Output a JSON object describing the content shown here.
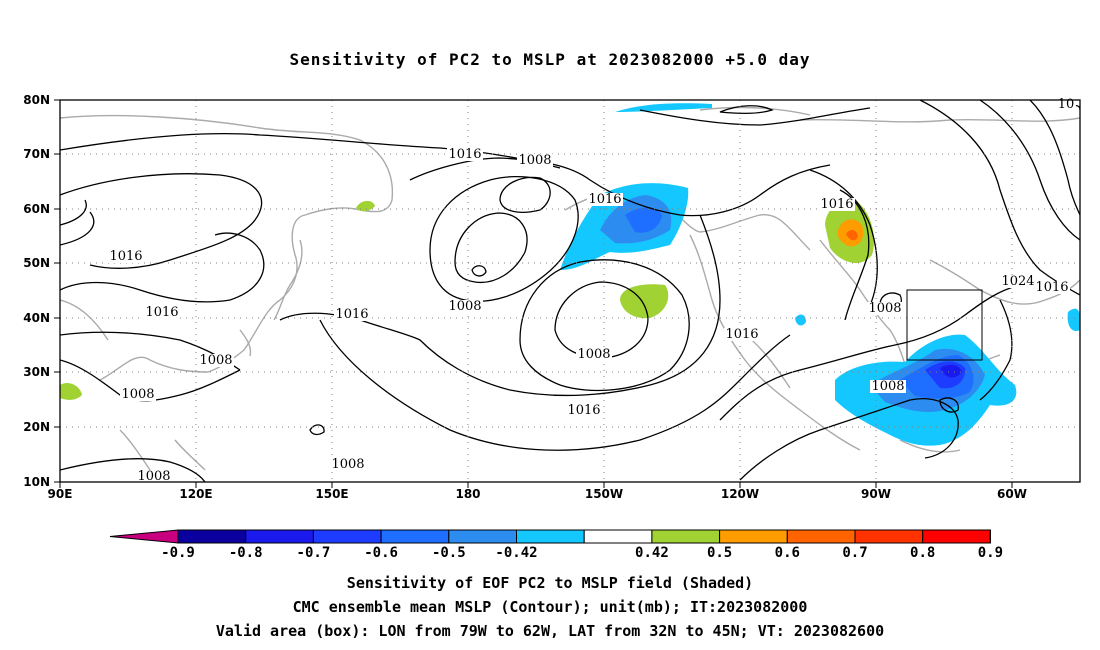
{
  "title": "Sensitivity of PC2 to MSLP at 2023082000 +5.0 day",
  "lat_labels": [
    "80N",
    "70N",
    "60N",
    "50N",
    "40N",
    "30N",
    "20N",
    "10N"
  ],
  "lon_labels": [
    "90E",
    "120E",
    "150E",
    "180",
    "150W",
    "120W",
    "90W",
    "60W"
  ],
  "contour_labels": [
    "1016",
    "1008",
    "1016",
    "1016",
    "1016",
    "1016",
    "1008",
    "1016",
    "1024",
    "1008",
    "1016",
    "1008",
    "1016",
    "1016",
    "1008",
    "1008",
    "1008",
    "1008",
    "1008",
    "10"
  ],
  "colorbar": {
    "ticks": [
      "-0.9",
      "-0.8",
      "-0.7",
      "-0.6",
      "-0.5",
      "-0.42",
      "0.42",
      "0.5",
      "0.6",
      "0.7",
      "0.8",
      "0.9"
    ],
    "colors": [
      "#0a00a0",
      "#1a1aee",
      "#1e3cff",
      "#1e6eff",
      "#2c8cf0",
      "#14c8ff",
      "#ffffff",
      "#a0d234",
      "#ff9c00",
      "#ff6400",
      "#ff3200",
      "#ff0000"
    ],
    "low_end": "#c8007f",
    "high_end": "#ff9ec8"
  },
  "valid_box": {
    "lon_from": "79W",
    "lon_to": "62W",
    "lat_from": "32N",
    "lat_to": "45N"
  },
  "captions": [
    "Sensitivity of EOF PC2 to MSLP field (Shaded)",
    "CMC ensemble mean MSLP (Contour); unit(mb); IT:2023082000",
    "Valid area (box): LON from 79W to 62W, LAT from 32N to 45N; VT: 2023082600"
  ]
}
